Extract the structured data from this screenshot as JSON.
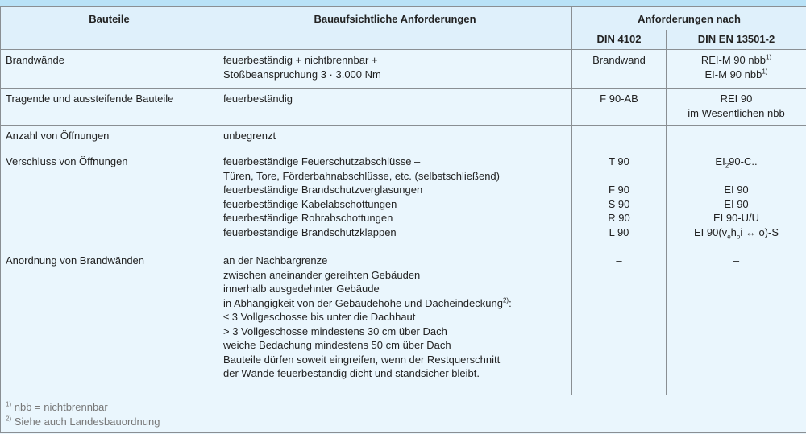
{
  "header": {
    "col1": "Bauteile",
    "col2": "Bauaufsichtliche Anforderungen",
    "col3": "Anforderungen nach",
    "sub1": "DIN 4102",
    "sub2": "DIN EN 13501-2"
  },
  "rows": [
    {
      "bauteil": "Brandwände",
      "anf": [
        "feuerbeständig + nichtbrennbar +",
        "Stoßbeanspruchung 3 · 3.000 Nm"
      ],
      "din4102": [
        "Brandwand"
      ],
      "en": [
        {
          "t": "REI-M 90 nbb",
          "sup": "1)"
        },
        {
          "t": "EI-M 90 nbb",
          "sup": "1)"
        }
      ]
    },
    {
      "bauteil": "Tragende und aussteifende Bauteile",
      "anf": [
        "feuerbeständig"
      ],
      "din4102": [
        "F 90-AB"
      ],
      "en": [
        "REI 90",
        "im Wesentlichen nbb"
      ]
    },
    {
      "bauteil": "Anzahl von Öffnungen",
      "anf": [
        "unbegrenzt"
      ]
    },
    {
      "bauteil": "Verschluss von Öffnungen",
      "anf": [
        "feuerbeständige Feuerschutzabschlüsse –",
        "Türen, Tore, Förderbahnabschlüsse, etc. (selbstschließend)",
        "feuerbeständige Brandschutzverglasungen",
        "feuerbeständige Kabelabschottungen",
        "feuerbeständige Rohrabschottungen",
        "feuerbeständige Brandschutzklappen"
      ],
      "din4102": [
        "T 90",
        "F 90",
        "S 90",
        "R 90",
        "L 90"
      ],
      "en": [
        {
          "a": "EI",
          "sub": "2",
          "b": "90-C.."
        },
        "EI 90",
        "EI 90",
        "EI 90-U/U",
        {
          "a": "EI 90(v",
          "sub1": "e",
          "b": "h",
          "sub2": "o",
          "c": "i ↔ o)-S"
        }
      ]
    },
    {
      "bauteil": "Anordnung von Brandwänden",
      "anf": [
        "an der Nachbargrenze",
        "zwischen aneinander gereihten Gebäuden",
        "innerhalb ausgedehnter Gebäude",
        {
          "t": "in Abhängigkeit von der Gebäudehöhe und Dacheindeckung",
          "sup": "2)",
          "after": ":"
        },
        "≤ 3 Vollgeschosse bis unter die Dachhaut",
        "> 3 Vollgeschosse mindestens 30 cm über Dach",
        "weiche Bedachung mindestens 50 cm über Dach",
        "Bauteile dürfen soweit eingreifen, wenn der Restquerschnitt",
        "der Wände feuerbeständig dicht und standsicher bleibt."
      ],
      "din4102": [
        "–"
      ],
      "en": [
        "–"
      ]
    }
  ],
  "footnotes": [
    {
      "mark": "1)",
      "text": " nbb = nichtbrennbar"
    },
    {
      "mark": "2)",
      "text": " Siehe auch Landesbauordnung"
    }
  ]
}
